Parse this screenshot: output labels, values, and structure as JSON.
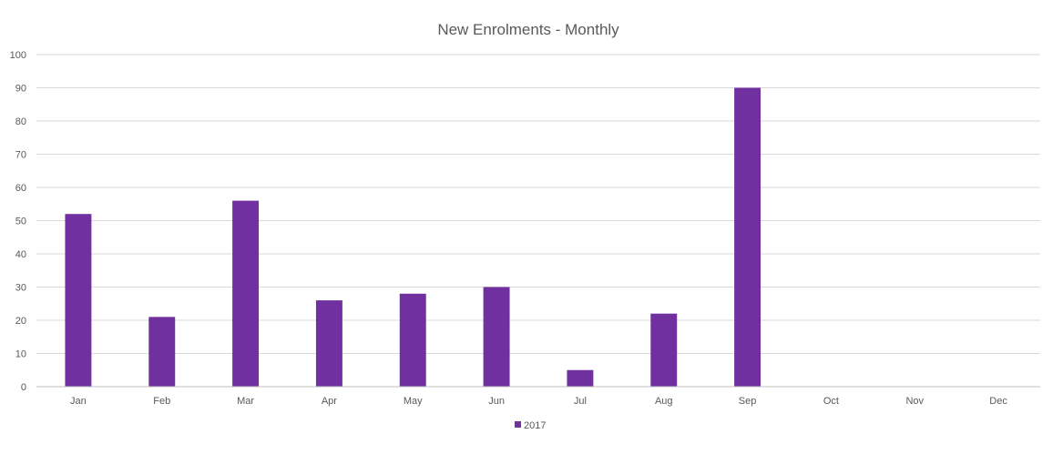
{
  "chart_data": {
    "type": "bar",
    "title": "New Enrolments - Monthly",
    "xlabel": "",
    "ylabel": "",
    "categories": [
      "Jan",
      "Feb",
      "Mar",
      "Apr",
      "May",
      "Jun",
      "Jul",
      "Aug",
      "Sep",
      "Oct",
      "Nov",
      "Dec"
    ],
    "series": [
      {
        "name": "2017",
        "color": "#7030a0",
        "values": [
          52,
          21,
          56,
          26,
          28,
          30,
          5,
          22,
          90,
          null,
          null,
          null
        ]
      }
    ],
    "ylim": [
      0,
      100
    ],
    "yticks": [
      "0",
      "10",
      "20",
      "30",
      "40",
      "50",
      "60",
      "70",
      "80",
      "90",
      "100"
    ],
    "grid": true,
    "legend_position": "bottom-center"
  }
}
